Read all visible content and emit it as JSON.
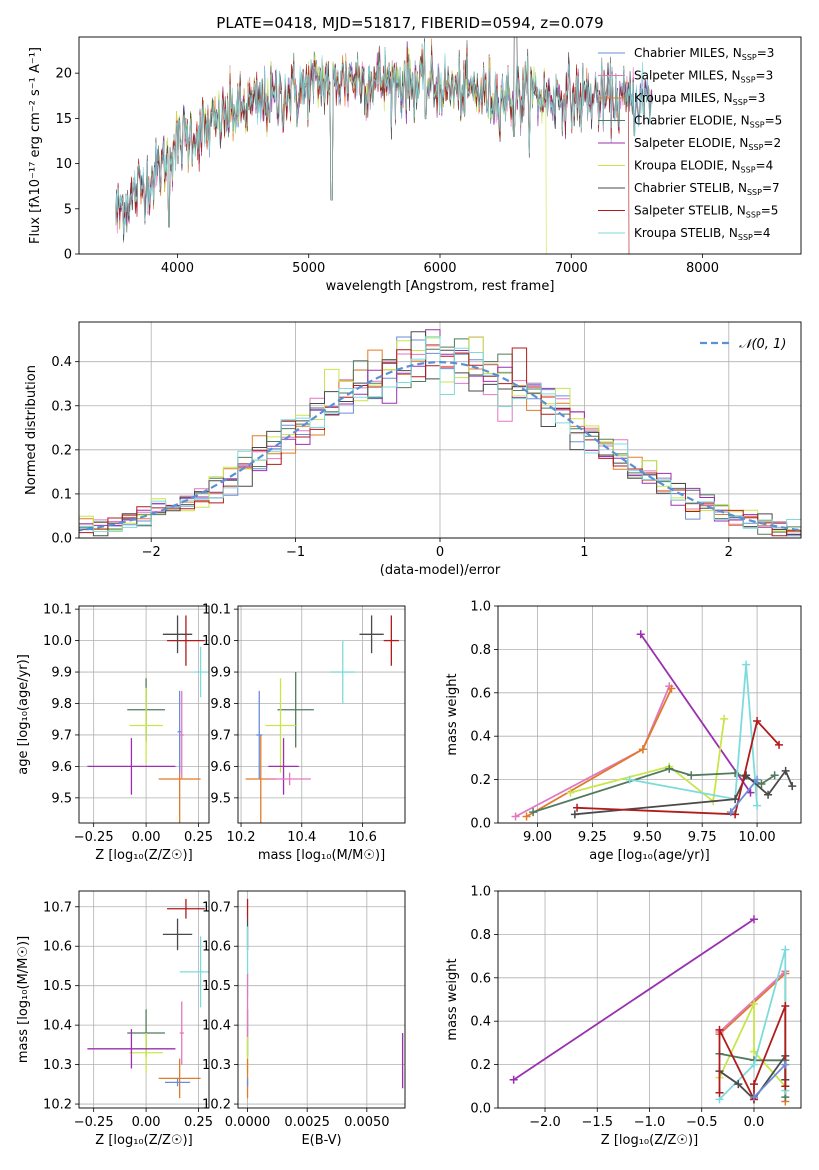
{
  "chart_data": [
    {
      "id": "spectrum",
      "type": "line",
      "title": "PLATE=0418, MJD=51817, FIBERID=0594, z=0.079",
      "xlabel": "wavelength [Angstrom, rest frame]",
      "ylabel": "Flux [fλ10⁻¹⁷ erg cm⁻² s⁻¹ A⁻¹]",
      "xlim": [
        3250,
        8750
      ],
      "ylim": [
        0,
        24
      ],
      "xticks": [
        4000,
        5000,
        6000,
        7000,
        8000
      ],
      "yticks": [
        0,
        5,
        10,
        15,
        20
      ],
      "grid": false,
      "legend_position": "top-right",
      "series": [
        {
          "name": "Chabrier MILES, N",
          "sub": "SSP",
          "suffix": "=3",
          "color": "#6b8ed8"
        },
        {
          "name": "Salpeter MILES, N",
          "sub": "SSP",
          "suffix": "=3",
          "color": "#e377c2"
        },
        {
          "name": "Kroupa MILES, N",
          "sub": "SSP",
          "suffix": "=3",
          "color": "#e07b28"
        },
        {
          "name": "Chabrier ELODIE, N",
          "sub": "SSP",
          "suffix": "=5",
          "color": "#527a5e"
        },
        {
          "name": "Salpeter ELODIE, N",
          "sub": "SSP",
          "suffix": "=2",
          "color": "#9a30b0"
        },
        {
          "name": "Kroupa ELODIE, N",
          "sub": "SSP",
          "suffix": "=4",
          "color": "#c8e64a"
        },
        {
          "name": "Chabrier STELIB, N",
          "sub": "SSP",
          "suffix": "=7",
          "color": "#4a4a4a"
        },
        {
          "name": "Salpeter STELIB, N",
          "sub": "SSP",
          "suffix": "=5",
          "color": "#b01c1c"
        },
        {
          "name": "Kroupa STELIB, N",
          "sub": "SSP",
          "suffix": "=4",
          "color": "#7fdbdb"
        }
      ],
      "continuum_points": [
        [
          3530,
          4.5
        ],
        [
          3700,
          7
        ],
        [
          3850,
          9
        ],
        [
          3950,
          11.5
        ],
        [
          4050,
          13
        ],
        [
          4250,
          14
        ],
        [
          4400,
          15.5
        ],
        [
          4600,
          16.5
        ],
        [
          4800,
          17.5
        ],
        [
          5000,
          18.5
        ],
        [
          5200,
          19.5
        ],
        [
          5400,
          19.5
        ],
        [
          5600,
          19
        ],
        [
          5800,
          19
        ],
        [
          6000,
          18.5
        ],
        [
          6200,
          18
        ],
        [
          6400,
          17.5
        ],
        [
          6600,
          17.5
        ],
        [
          6800,
          17.5
        ],
        [
          7000,
          17.3
        ],
        [
          7200,
          17.3
        ],
        [
          7400,
          17
        ],
        [
          7600,
          17
        ]
      ],
      "absorption_features": [
        [
          5175,
          6
        ],
        [
          6563,
          13
        ],
        [
          3934,
          3
        ],
        [
          5890,
          15
        ]
      ]
    },
    {
      "id": "residuals",
      "type": "line",
      "xlabel": "(data-model)/error",
      "ylabel": "Normed distribution",
      "xlim": [
        -2.5,
        2.5
      ],
      "ylim": [
        0,
        0.49
      ],
      "xticks": [
        -2,
        -1,
        0,
        1,
        2
      ],
      "yticks": [
        0.0,
        0.1,
        0.2,
        0.3,
        0.4
      ],
      "grid": true,
      "legend_position": "top-right",
      "reference_label": "𝒩(0, 1)",
      "reference": {
        "mean": 0,
        "sigma": 1,
        "color": "#5b8fd6"
      },
      "bin_width": 0.1
    },
    {
      "id": "age_vs_Z",
      "type": "scatter",
      "xlabel": "Z [log₁₀(Z/Z☉)]",
      "ylabel": "age  [log₁₀(age/yr)]",
      "xlim": [
        -0.32,
        0.3
      ],
      "ylim": [
        9.42,
        10.11
      ],
      "xticks": [
        -0.25,
        0.0,
        0.25
      ],
      "yticks": [
        9.5,
        9.6,
        9.7,
        9.8,
        9.9,
        10.0,
        10.1
      ],
      "grid": true,
      "points": [
        {
          "x": 0.19,
          "y": 10.0,
          "xerr": 0.09,
          "yerr": 0.08,
          "color": "#b01c1c"
        },
        {
          "x": 0.15,
          "y": 10.02,
          "xerr": 0.07,
          "yerr": 0.06,
          "color": "#4a4a4a"
        },
        {
          "x": 0.26,
          "y": 9.9,
          "xerr": 0.03,
          "yerr": 0.08,
          "color": "#7fdbdb"
        },
        {
          "x": 0.0,
          "y": 9.78,
          "xerr": 0.09,
          "yerr": 0.1,
          "color": "#527a5e"
        },
        {
          "x": 0.0,
          "y": 9.73,
          "xerr": 0.08,
          "yerr": 0.12,
          "color": "#c8e64a"
        },
        {
          "x": -0.07,
          "y": 9.6,
          "xerr": 0.21,
          "yerr": 0.09,
          "color": "#9a30b0"
        },
        {
          "x": 0.16,
          "y": 9.56,
          "xerr": 0.1,
          "yerr": 0.14,
          "color": "#e07b28"
        },
        {
          "x": 0.16,
          "y": 9.71,
          "xerr": 0.01,
          "yerr": 0.13,
          "color": "#6b8ed8"
        },
        {
          "x": 0.17,
          "y": 9.7,
          "xerr": 0.01,
          "yerr": 0.14,
          "color": "#e377c2"
        }
      ]
    },
    {
      "id": "age_vs_mass",
      "type": "scatter",
      "xlabel": "mass [log₁₀(M/M☉)]",
      "ylabel": "",
      "xlim": [
        10.19,
        10.74
      ],
      "ylim": [
        9.42,
        10.11
      ],
      "xticks": [
        10.2,
        10.4,
        10.6
      ],
      "yticks": [
        9.5,
        9.6,
        9.7,
        9.8,
        9.9,
        10.0,
        10.1
      ],
      "grid": true,
      "points": [
        {
          "x": 10.695,
          "y": 10.0,
          "xerr": 0.025,
          "yerr": 0.08,
          "color": "#b01c1c"
        },
        {
          "x": 10.63,
          "y": 10.02,
          "xerr": 0.04,
          "yerr": 0.06,
          "color": "#4a4a4a"
        },
        {
          "x": 10.535,
          "y": 9.9,
          "xerr": 0.04,
          "yerr": 0.1,
          "color": "#7fdbdb"
        },
        {
          "x": 10.38,
          "y": 9.78,
          "xerr": 0.06,
          "yerr": 0.12,
          "color": "#527a5e"
        },
        {
          "x": 10.33,
          "y": 9.73,
          "xerr": 0.05,
          "yerr": 0.15,
          "color": "#c8e64a"
        },
        {
          "x": 10.34,
          "y": 9.6,
          "xerr": 0.05,
          "yerr": 0.09,
          "color": "#9a30b0"
        },
        {
          "x": 10.265,
          "y": 9.56,
          "xerr": 0.05,
          "yerr": 0.14,
          "color": "#e07b28"
        },
        {
          "x": 10.26,
          "y": 9.7,
          "xerr": 0.01,
          "yerr": 0.14,
          "color": "#6b8ed8"
        },
        {
          "x": 10.36,
          "y": 9.56,
          "xerr": 0.07,
          "yerr": 0.02,
          "color": "#e377c2"
        }
      ]
    },
    {
      "id": "weight_vs_age",
      "type": "line",
      "xlabel": "age  [log₁₀(age/yr)]",
      "ylabel": "mass weight",
      "xlim": [
        8.82,
        10.2
      ],
      "ylim": [
        0.0,
        1.0
      ],
      "xticks": [
        9.0,
        9.25,
        9.5,
        9.75,
        10.0
      ],
      "yticks": [
        0.0,
        0.2,
        0.4,
        0.6,
        0.8,
        1.0
      ],
      "grid": true,
      "series": [
        {
          "color": "#e377c2",
          "points": [
            [
              8.9,
              0.03
            ],
            [
              9.48,
              0.34
            ],
            [
              9.6,
              0.63
            ]
          ]
        },
        {
          "color": "#e07b28",
          "points": [
            [
              8.95,
              0.03
            ],
            [
              9.48,
              0.34
            ],
            [
              9.61,
              0.62
            ]
          ]
        },
        {
          "color": "#9a30b0",
          "points": [
            [
              9.47,
              0.87
            ],
            [
              9.97,
              0.14
            ]
          ]
        },
        {
          "color": "#c8e64a",
          "points": [
            [
              9.15,
              0.14
            ],
            [
              9.6,
              0.26
            ],
            [
              9.8,
              0.1
            ],
            [
              9.85,
              0.48
            ]
          ]
        },
        {
          "color": "#527a5e",
          "points": [
            [
              8.98,
              0.05
            ],
            [
              9.6,
              0.25
            ],
            [
              9.7,
              0.22
            ],
            [
              9.9,
              0.23
            ],
            [
              10.02,
              0.18
            ],
            [
              10.08,
              0.22
            ]
          ]
        },
        {
          "color": "#7fdbdb",
          "points": [
            [
              9.42,
              0.2
            ],
            [
              9.9,
              0.11
            ],
            [
              9.95,
              0.73
            ],
            [
              10.0,
              0.08
            ]
          ]
        },
        {
          "color": "#4a4a4a",
          "points": [
            [
              9.17,
              0.04
            ],
            [
              9.9,
              0.11
            ],
            [
              9.95,
              0.22
            ],
            [
              10.05,
              0.13
            ],
            [
              10.13,
              0.24
            ],
            [
              10.16,
              0.17
            ]
          ]
        },
        {
          "color": "#b01c1c",
          "points": [
            [
              9.18,
              0.07
            ],
            [
              9.9,
              0.04
            ],
            [
              10.0,
              0.47
            ],
            [
              10.1,
              0.36
            ]
          ]
        },
        {
          "color": "#6b8ed8",
          "points": [
            [
              9.88,
              0.05
            ],
            [
              10.0,
              0.2
            ]
          ]
        }
      ]
    },
    {
      "id": "mass_vs_Z",
      "type": "scatter",
      "xlabel": "Z [log₁₀(Z/Z☉)]",
      "ylabel": "mass [log₁₀(M/M☉)]",
      "xlim": [
        -0.32,
        0.3
      ],
      "ylim": [
        10.19,
        10.74
      ],
      "xticks": [
        -0.25,
        0.0,
        0.25
      ],
      "yticks": [
        10.2,
        10.3,
        10.4,
        10.5,
        10.6,
        10.7
      ],
      "grid": true,
      "points": [
        {
          "x": 0.19,
          "y": 10.695,
          "xerr": 0.09,
          "yerr": 0.025,
          "color": "#b01c1c"
        },
        {
          "x": 0.15,
          "y": 10.63,
          "xerr": 0.07,
          "yerr": 0.04,
          "color": "#4a4a4a"
        },
        {
          "x": 0.26,
          "y": 10.535,
          "xerr": 0.1,
          "yerr": 0.09,
          "color": "#7fdbdb"
        },
        {
          "x": 0.0,
          "y": 10.38,
          "xerr": 0.09,
          "yerr": 0.06,
          "color": "#527a5e"
        },
        {
          "x": 0.0,
          "y": 10.33,
          "xerr": 0.08,
          "yerr": 0.05,
          "color": "#c8e64a"
        },
        {
          "x": -0.07,
          "y": 10.34,
          "xerr": 0.21,
          "yerr": 0.05,
          "color": "#9a30b0"
        },
        {
          "x": 0.16,
          "y": 10.265,
          "xerr": 0.1,
          "yerr": 0.05,
          "color": "#e07b28"
        },
        {
          "x": 0.15,
          "y": 10.255,
          "xerr": 0.06,
          "yerr": 0.01,
          "color": "#6b8ed8"
        },
        {
          "x": 0.17,
          "y": 10.38,
          "xerr": 0.01,
          "yerr": 0.08,
          "color": "#e377c2"
        }
      ]
    },
    {
      "id": "mass_vs_ebv",
      "type": "scatter",
      "xlabel": "E(B-V)",
      "ylabel": "",
      "xlim": [
        -0.0004,
        0.0066
      ],
      "ylim": [
        10.19,
        10.74
      ],
      "xticks": [
        0.0,
        0.0025,
        0.005
      ],
      "xtick_labels": [
        "0.0000",
        "0.0025",
        "0.0050"
      ],
      "yticks": [
        10.2,
        10.3,
        10.4,
        10.5,
        10.6,
        10.7
      ],
      "grid": true,
      "points": [
        {
          "x": 0.0,
          "y": 10.695,
          "xerr": 0,
          "yerr": 0.025,
          "color": "#b01c1c"
        },
        {
          "x": 0.0,
          "y": 10.63,
          "xerr": 0,
          "yerr": 0.04,
          "color": "#4a4a4a"
        },
        {
          "x": 0.0,
          "y": 10.56,
          "xerr": 0,
          "yerr": 0.09,
          "color": "#7fdbdb"
        },
        {
          "x": 0.0,
          "y": 10.38,
          "xerr": 0,
          "yerr": 0.06,
          "color": "#527a5e"
        },
        {
          "x": 0.0,
          "y": 10.33,
          "xerr": 0,
          "yerr": 0.05,
          "color": "#c8e64a"
        },
        {
          "x": 0.0065,
          "y": 10.31,
          "xerr": 0,
          "yerr": 0.07,
          "color": "#9a30b0"
        },
        {
          "x": 0.0,
          "y": 10.265,
          "xerr": 0,
          "yerr": 0.05,
          "color": "#e07b28"
        },
        {
          "x": 0.0,
          "y": 10.255,
          "xerr": 0,
          "yerr": 0.01,
          "color": "#6b8ed8"
        },
        {
          "x": 0.0,
          "y": 10.45,
          "xerr": 0,
          "yerr": 0.08,
          "color": "#e377c2"
        }
      ]
    },
    {
      "id": "weight_vs_Z",
      "type": "line",
      "xlabel": "Z [log₁₀(Z/Z☉)]",
      "ylabel": "mass weight",
      "xlim": [
        -2.45,
        0.45
      ],
      "ylim": [
        0.0,
        1.0
      ],
      "xticks": [
        -2.0,
        -1.5,
        -1.0,
        -0.5,
        0.0
      ],
      "yticks": [
        0.0,
        0.2,
        0.4,
        0.6,
        0.8,
        1.0
      ],
      "grid": true,
      "series": [
        {
          "color": "#9a30b0",
          "points": [
            [
              -2.3,
              0.13
            ],
            [
              0.0,
              0.87
            ]
          ]
        },
        {
          "color": "#e07b28",
          "points": [
            [
              -0.33,
              0.34
            ],
            [
              0.3,
              0.62
            ],
            [
              0.3,
              0.03
            ]
          ]
        },
        {
          "color": "#e377c2",
          "points": [
            [
              -0.33,
              0.35
            ],
            [
              0.3,
              0.63
            ]
          ]
        },
        {
          "color": "#c8e64a",
          "points": [
            [
              -0.33,
              0.14
            ],
            [
              0.0,
              0.48
            ],
            [
              0.0,
              0.26
            ],
            [
              0.3,
              0.1
            ]
          ]
        },
        {
          "color": "#527a5e",
          "points": [
            [
              -0.33,
              0.25
            ],
            [
              0.0,
              0.22
            ],
            [
              0.3,
              0.22
            ],
            [
              0.3,
              0.05
            ]
          ]
        },
        {
          "color": "#7fdbdb",
          "points": [
            [
              -0.33,
              0.04
            ],
            [
              0.0,
              0.2
            ],
            [
              0.3,
              0.73
            ],
            [
              0.3,
              0.08
            ]
          ]
        },
        {
          "color": "#4a4a4a",
          "points": [
            [
              -0.33,
              0.17
            ],
            [
              -0.15,
              0.11
            ],
            [
              0.0,
              0.04
            ],
            [
              0.3,
              0.24
            ],
            [
              0.3,
              0.13
            ]
          ]
        },
        {
          "color": "#b01c1c",
          "points": [
            [
              -0.33,
              0.07
            ],
            [
              -0.33,
              0.36
            ],
            [
              0.0,
              0.04
            ],
            [
              0.0,
              0.11
            ],
            [
              0.3,
              0.47
            ],
            [
              0.3,
              0.1
            ]
          ]
        },
        {
          "color": "#6b8ed8",
          "points": [
            [
              0.0,
              0.05
            ],
            [
              0.3,
              0.2
            ]
          ]
        }
      ]
    }
  ]
}
